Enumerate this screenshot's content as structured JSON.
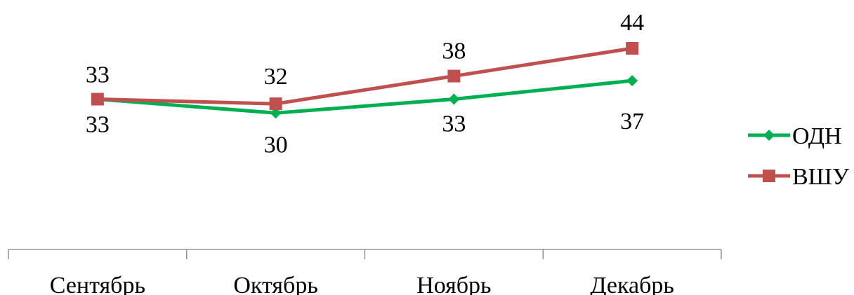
{
  "chart_data": {
    "type": "line",
    "categories": [
      "Сентябрь",
      "Октябрь",
      "Ноябрь",
      "Декабрь"
    ],
    "series": [
      {
        "name": "ОДН",
        "values": [
          33,
          30,
          33,
          37
        ],
        "color": "#00b050",
        "marker": "diamond"
      },
      {
        "name": "ВШУ",
        "values": [
          33,
          32,
          38,
          44
        ],
        "color": "#c0504d",
        "marker": "square"
      }
    ],
    "title": "",
    "xlabel": "",
    "ylabel": "",
    "ylim": [
      15,
      50
    ],
    "grid": false,
    "legend": "right"
  }
}
